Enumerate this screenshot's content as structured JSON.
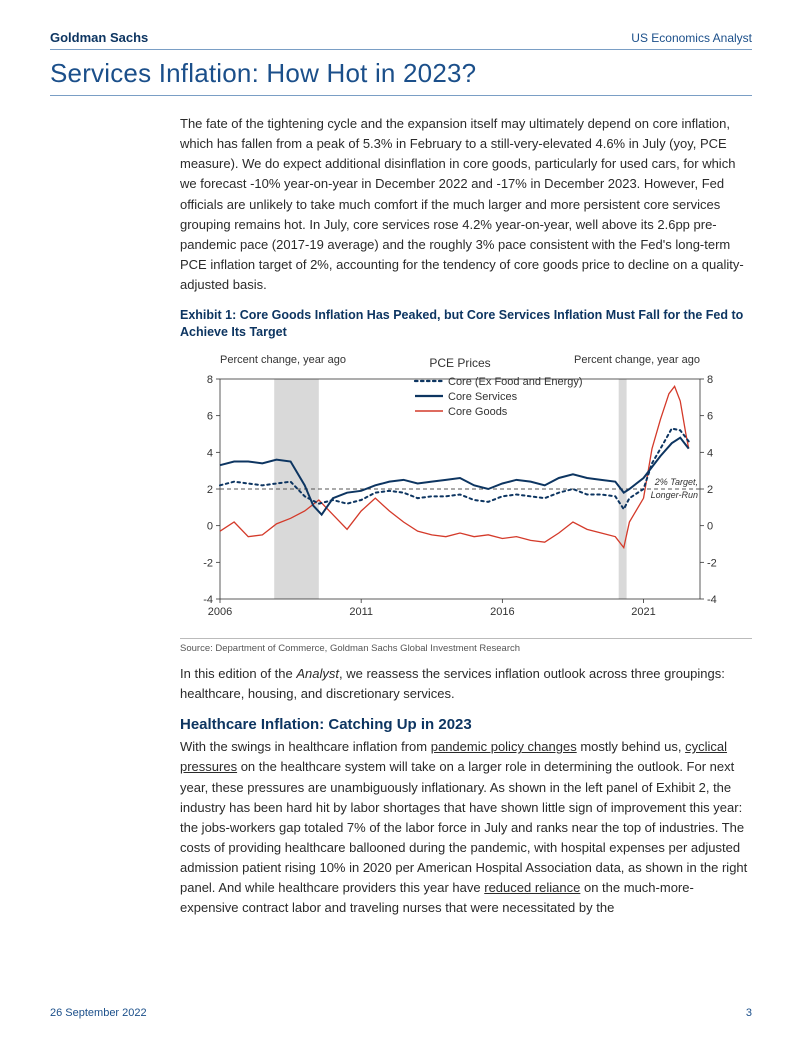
{
  "header": {
    "brand": "Goldman Sachs",
    "doc_type": "US Economics Analyst"
  },
  "title": "Services Inflation: How Hot in 2023?",
  "para1": "The fate of the tightening cycle and the expansion itself may ultimately depend on core inflation, which has fallen from a peak of 5.3% in February to a still-very-elevated 4.6% in July (yoy, PCE measure). We do expect additional disinflation in core goods, particularly for used cars, for which we forecast -10% year-on-year in December 2022 and -17% in December 2023. However, Fed officials are unlikely to take much comfort if the much larger and more persistent core services grouping remains hot. In July, core services rose 4.2% year-on-year, well above its 2.6pp pre-pandemic pace (2017-19 average) and the roughly 3% pace consistent with the Fed's long-term PCE inflation target of 2%, accounting for the tendency of core goods price to decline on a quality-adjusted basis.",
  "exhibit": {
    "caption": "Exhibit 1: Core Goods Inflation Has Peaked, but Core Services Inflation Must Fall for the Fed to Achieve Its Target",
    "y_label_left": "Percent change, year ago",
    "y_label_right": "Percent change, year ago",
    "center_title": "PCE Prices",
    "legend": {
      "core_ex": "Core (Ex Food and Energy)",
      "core_services": "Core Services",
      "core_goods": "Core Goods"
    },
    "target_label": "2% Target, Longer-Run",
    "source": "Source: Department of Commerce, Goldman Sachs Global Investment Research",
    "x_ticks": [
      "2006",
      "2011",
      "2016",
      "2021"
    ],
    "y_ticks": [
      -4,
      -2,
      0,
      2,
      4,
      6,
      8
    ],
    "y_min": -4,
    "y_max": 8,
    "x_min": 2006,
    "x_max": 2023,
    "colors": {
      "core_ex": "#0d3561",
      "core_services": "#0d3561",
      "core_goods": "#d43a2a",
      "recession": "#d9d9d9",
      "target_line": "#555555",
      "axis": "#333333",
      "grid": "#e0e0e0"
    },
    "recessions": [
      {
        "start": 2007.92,
        "end": 2009.5
      },
      {
        "start": 2020.12,
        "end": 2020.4
      }
    ],
    "series": {
      "core_services": [
        [
          2006,
          3.3
        ],
        [
          2006.5,
          3.5
        ],
        [
          2007,
          3.5
        ],
        [
          2007.5,
          3.4
        ],
        [
          2008,
          3.6
        ],
        [
          2008.5,
          3.5
        ],
        [
          2009,
          2.2
        ],
        [
          2009.3,
          1.1
        ],
        [
          2009.6,
          0.6
        ],
        [
          2010,
          1.5
        ],
        [
          2010.5,
          1.8
        ],
        [
          2011,
          1.9
        ],
        [
          2011.5,
          2.2
        ],
        [
          2012,
          2.4
        ],
        [
          2012.5,
          2.5
        ],
        [
          2013,
          2.3
        ],
        [
          2013.5,
          2.4
        ],
        [
          2014,
          2.5
        ],
        [
          2014.5,
          2.6
        ],
        [
          2015,
          2.2
        ],
        [
          2015.5,
          2.0
        ],
        [
          2016,
          2.3
        ],
        [
          2016.5,
          2.5
        ],
        [
          2017,
          2.4
        ],
        [
          2017.5,
          2.2
        ],
        [
          2018,
          2.6
        ],
        [
          2018.5,
          2.8
        ],
        [
          2019,
          2.6
        ],
        [
          2019.5,
          2.5
        ],
        [
          2020,
          2.4
        ],
        [
          2020.3,
          1.8
        ],
        [
          2020.5,
          2.0
        ],
        [
          2021,
          2.6
        ],
        [
          2021.3,
          3.2
        ],
        [
          2021.6,
          3.8
        ],
        [
          2022,
          4.5
        ],
        [
          2022.3,
          4.8
        ],
        [
          2022.5,
          4.4
        ],
        [
          2022.6,
          4.2
        ]
      ],
      "core_goods": [
        [
          2006,
          -0.3
        ],
        [
          2006.5,
          0.2
        ],
        [
          2007,
          -0.6
        ],
        [
          2007.5,
          -0.5
        ],
        [
          2008,
          0.1
        ],
        [
          2008.5,
          0.4
        ],
        [
          2009,
          0.8
        ],
        [
          2009.5,
          1.4
        ],
        [
          2010,
          0.6
        ],
        [
          2010.5,
          -0.2
        ],
        [
          2011,
          0.8
        ],
        [
          2011.5,
          1.5
        ],
        [
          2012,
          0.8
        ],
        [
          2012.5,
          0.2
        ],
        [
          2013,
          -0.3
        ],
        [
          2013.5,
          -0.5
        ],
        [
          2014,
          -0.6
        ],
        [
          2014.5,
          -0.4
        ],
        [
          2015,
          -0.6
        ],
        [
          2015.5,
          -0.5
        ],
        [
          2016,
          -0.7
        ],
        [
          2016.5,
          -0.6
        ],
        [
          2017,
          -0.8
        ],
        [
          2017.5,
          -0.9
        ],
        [
          2018,
          -0.4
        ],
        [
          2018.5,
          0.2
        ],
        [
          2019,
          -0.2
        ],
        [
          2019.5,
          -0.4
        ],
        [
          2020,
          -0.6
        ],
        [
          2020.3,
          -1.2
        ],
        [
          2020.5,
          0.2
        ],
        [
          2021,
          1.5
        ],
        [
          2021.3,
          4.2
        ],
        [
          2021.6,
          5.8
        ],
        [
          2021.9,
          7.2
        ],
        [
          2022.1,
          7.6
        ],
        [
          2022.3,
          6.8
        ],
        [
          2022.5,
          5.0
        ],
        [
          2022.6,
          4.2
        ]
      ],
      "core_ex": [
        [
          2006,
          2.2
        ],
        [
          2006.5,
          2.4
        ],
        [
          2007,
          2.3
        ],
        [
          2007.5,
          2.2
        ],
        [
          2008,
          2.3
        ],
        [
          2008.5,
          2.4
        ],
        [
          2009,
          1.6
        ],
        [
          2009.5,
          1.2
        ],
        [
          2010,
          1.4
        ],
        [
          2010.5,
          1.2
        ],
        [
          2011,
          1.4
        ],
        [
          2011.5,
          1.8
        ],
        [
          2012,
          1.9
        ],
        [
          2012.5,
          1.8
        ],
        [
          2013,
          1.5
        ],
        [
          2013.5,
          1.6
        ],
        [
          2014,
          1.6
        ],
        [
          2014.5,
          1.7
        ],
        [
          2015,
          1.4
        ],
        [
          2015.5,
          1.3
        ],
        [
          2016,
          1.6
        ],
        [
          2016.5,
          1.7
        ],
        [
          2017,
          1.6
        ],
        [
          2017.5,
          1.5
        ],
        [
          2018,
          1.8
        ],
        [
          2018.5,
          2.0
        ],
        [
          2019,
          1.7
        ],
        [
          2019.5,
          1.7
        ],
        [
          2020,
          1.6
        ],
        [
          2020.3,
          0.9
        ],
        [
          2020.5,
          1.5
        ],
        [
          2021,
          2.0
        ],
        [
          2021.3,
          3.4
        ],
        [
          2021.6,
          4.2
        ],
        [
          2022,
          5.3
        ],
        [
          2022.3,
          5.2
        ],
        [
          2022.5,
          4.8
        ],
        [
          2022.6,
          4.6
        ]
      ]
    }
  },
  "para2_prefix": "In this edition of the ",
  "para2_italic": "Analyst",
  "para2_suffix": ", we reassess the services inflation outlook across three groupings: healthcare, housing, and discretionary services.",
  "section2_title": "Healthcare Inflation: Catching Up in 2023",
  "para3": {
    "t1": "With the swings in healthcare inflation from ",
    "u1": "pandemic policy changes",
    "t2": " mostly behind us, ",
    "u2": "cyclical pressures",
    "t3": " on the healthcare system will take on a larger role in determining the outlook. For next year, these pressures are unambiguously inflationary. As shown in the left panel of Exhibit 2, the industry has been hard hit by labor shortages that have shown little sign of improvement this year: the jobs-workers gap totaled 7% of the labor force in July and ranks near the top of industries. The costs of providing healthcare ballooned during the pandemic, with hospital expenses per adjusted admission patient rising 10% in 2020 per American Hospital Association data, as shown in the right panel. And while healthcare providers this year have ",
    "u3": "reduced reliance",
    "t4": " on the much-more-expensive contract labor and traveling nurses that were necessitated by the"
  },
  "footer": {
    "date": "26 September 2022",
    "page": "3"
  }
}
